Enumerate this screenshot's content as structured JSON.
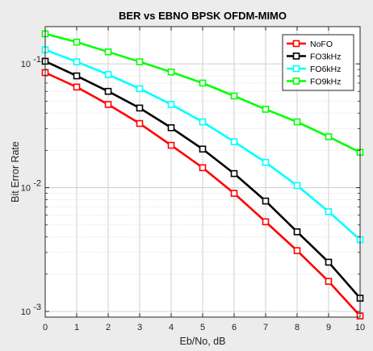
{
  "chart_data": {
    "type": "line",
    "title": "BER vs EBNO BPSK OFDM-MIMO",
    "xlabel": "Eb/No, dB",
    "ylabel": "Bit Error Rate",
    "yscale": "log",
    "xlim": [
      0,
      10
    ],
    "ylim": [
      0.0009,
      0.2
    ],
    "grid": true,
    "legend_position": "top-right",
    "x": [
      0,
      1,
      2,
      3,
      4,
      5,
      6,
      7,
      8,
      9,
      10
    ],
    "x_ticks": [
      "0",
      "1",
      "2",
      "3",
      "4",
      "5",
      "6",
      "7",
      "8",
      "9",
      "10"
    ],
    "y_ticks": [
      {
        "value": 0.001,
        "mantissa": "10",
        "exponent": "-3"
      },
      {
        "value": 0.01,
        "mantissa": "10",
        "exponent": "-2"
      },
      {
        "value": 0.1,
        "mantissa": "10",
        "exponent": "-1"
      }
    ],
    "series": [
      {
        "name": "NoFO",
        "color": "#ff0000",
        "values": [
          0.085,
          0.065,
          0.047,
          0.033,
          0.022,
          0.0145,
          0.009,
          0.0053,
          0.0031,
          0.00175,
          0.00092
        ]
      },
      {
        "name": "FO3kHz",
        "color": "#000000",
        "values": [
          0.105,
          0.08,
          0.06,
          0.044,
          0.0305,
          0.0205,
          0.013,
          0.0078,
          0.0044,
          0.0025,
          0.00128
        ]
      },
      {
        "name": "FO6kHz",
        "color": "#00ffff",
        "values": [
          0.13,
          0.104,
          0.082,
          0.063,
          0.047,
          0.034,
          0.0235,
          0.016,
          0.0104,
          0.0064,
          0.0038
        ]
      },
      {
        "name": "FO9kHz",
        "color": "#00ff00",
        "values": [
          0.175,
          0.15,
          0.125,
          0.104,
          0.086,
          0.07,
          0.055,
          0.043,
          0.034,
          0.0258,
          0.0193
        ]
      }
    ]
  }
}
